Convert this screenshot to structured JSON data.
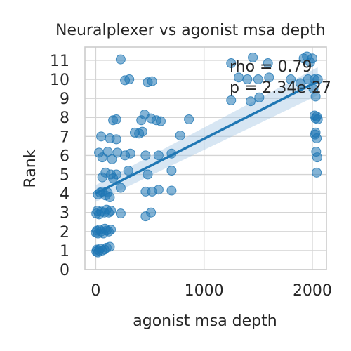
{
  "chart_data": {
    "type": "scatter",
    "title": "Neuralplexer vs agonist msa depth",
    "xlabel": "agonist msa depth",
    "ylabel": "Rank",
    "xlim": [
      -100,
      2130
    ],
    "ylim": [
      0,
      11.7
    ],
    "x_ticks": [
      0,
      1000,
      2000
    ],
    "y_ticks": [
      0,
      1,
      2,
      3,
      4,
      5,
      6,
      7,
      8,
      9,
      10,
      11
    ],
    "grid": true,
    "annotation": {
      "rho_text": "rho = 0.79",
      "p_text": "p = 2.34e-27"
    },
    "point_color": "#1f77b4",
    "line_color": "#1f77b4",
    "band_color": "#a6c8e4",
    "regression": {
      "x_start": 0,
      "y_start": 4.0,
      "x_end": 2050,
      "y_end": 9.9
    },
    "points": [
      [
        5,
        0.95
      ],
      [
        10,
        1.05
      ],
      [
        20,
        0.9
      ],
      [
        30,
        1.0
      ],
      [
        40,
        1.1
      ],
      [
        60,
        1.0
      ],
      [
        80,
        1.05
      ],
      [
        100,
        1.15
      ],
      [
        130,
        1.2
      ],
      [
        0,
        1.95
      ],
      [
        10,
        2.05
      ],
      [
        20,
        1.9
      ],
      [
        35,
        2.1
      ],
      [
        50,
        2.0
      ],
      [
        70,
        1.9
      ],
      [
        85,
        2.15
      ],
      [
        100,
        2.05
      ],
      [
        120,
        2.0
      ],
      [
        140,
        2.1
      ],
      [
        5,
        2.95
      ],
      [
        15,
        3.1
      ],
      [
        30,
        2.9
      ],
      [
        50,
        3.05
      ],
      [
        80,
        3.0
      ],
      [
        100,
        3.15
      ],
      [
        120,
        3.0
      ],
      [
        140,
        3.1
      ],
      [
        230,
        2.95
      ],
      [
        460,
        2.8
      ],
      [
        510,
        3.0
      ],
      [
        20,
        3.95
      ],
      [
        40,
        4.05
      ],
      [
        60,
        4.1
      ],
      [
        90,
        3.9
      ],
      [
        110,
        4.05
      ],
      [
        130,
        3.8
      ],
      [
        230,
        4.3
      ],
      [
        460,
        4.1
      ],
      [
        520,
        4.1
      ],
      [
        580,
        4.2
      ],
      [
        700,
        4.15
      ],
      [
        60,
        4.85
      ],
      [
        90,
        5.1
      ],
      [
        140,
        5.0
      ],
      [
        160,
        4.8
      ],
      [
        190,
        5.0
      ],
      [
        300,
        5.2
      ],
      [
        480,
        5.0
      ],
      [
        700,
        5.2
      ],
      [
        30,
        6.15
      ],
      [
        60,
        5.9
      ],
      [
        110,
        6.2
      ],
      [
        150,
        5.8
      ],
      [
        200,
        6.15
      ],
      [
        270,
        6.0
      ],
      [
        320,
        6.1
      ],
      [
        460,
        6.0
      ],
      [
        700,
        6.1
      ],
      [
        50,
        7.0
      ],
      [
        130,
        6.9
      ],
      [
        190,
        6.85
      ],
      [
        360,
        7.2
      ],
      [
        400,
        7.15
      ],
      [
        430,
        7.25
      ],
      [
        580,
        6.0
      ],
      [
        780,
        7.05
      ],
      [
        160,
        7.85
      ],
      [
        190,
        7.9
      ],
      [
        420,
        7.85
      ],
      [
        450,
        8.15
      ],
      [
        510,
        7.95
      ],
      [
        560,
        7.85
      ],
      [
        600,
        7.8
      ],
      [
        860,
        7.9
      ],
      [
        270,
        9.95
      ],
      [
        310,
        10.0
      ],
      [
        480,
        9.85
      ],
      [
        520,
        9.9
      ],
      [
        230,
        11.05
      ],
      [
        1250,
        10.85
      ],
      [
        1320,
        10.1
      ],
      [
        1400,
        10.0
      ],
      [
        1450,
        11.15
      ],
      [
        1500,
        10.0
      ],
      [
        1590,
        10.85
      ],
      [
        1600,
        10.1
      ],
      [
        1800,
        10.0
      ],
      [
        1920,
        11.1
      ],
      [
        1950,
        11.2
      ],
      [
        1980,
        10.9
      ],
      [
        2000,
        11.1
      ],
      [
        2020,
        10.0
      ],
      [
        2050,
        10.0
      ],
      [
        1250,
        8.9
      ],
      [
        1430,
        8.85
      ],
      [
        1510,
        9.05
      ],
      [
        1890,
        9.8
      ],
      [
        1960,
        10.0
      ],
      [
        2010,
        9.5
      ],
      [
        2030,
        9.1
      ],
      [
        2020,
        8.1
      ],
      [
        2030,
        7.95
      ],
      [
        2040,
        8.05
      ],
      [
        2050,
        7.9
      ],
      [
        2025,
        7.1
      ],
      [
        2040,
        6.9
      ],
      [
        2035,
        6.2
      ],
      [
        2045,
        5.9
      ],
      [
        2040,
        5.1
      ],
      [
        2030,
        7.2
      ]
    ]
  }
}
